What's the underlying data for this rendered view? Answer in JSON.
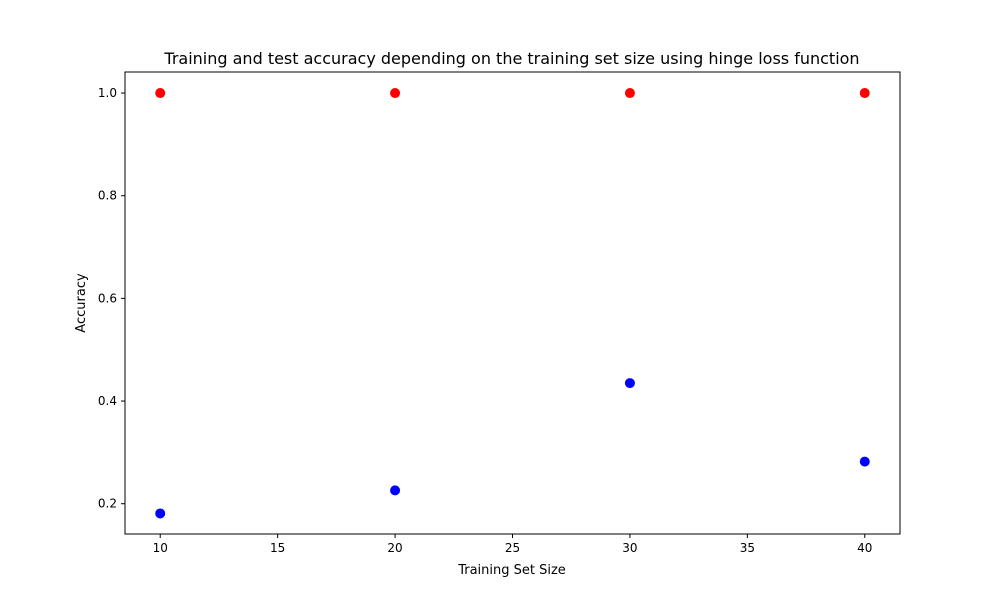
{
  "chart_data": {
    "type": "scatter",
    "title": "Training and test accuracy depending on the training set size using hinge loss function",
    "xlabel": "Training Set Size",
    "ylabel": "Accuracy",
    "xlim": [
      8.5,
      41.5
    ],
    "ylim": [
      0.141,
      1.041
    ],
    "xticks": [
      10,
      15,
      20,
      25,
      30,
      35,
      40
    ],
    "yticks": [
      0.2,
      0.4,
      0.6,
      0.8,
      1.0
    ],
    "xtick_labels": [
      "10",
      "15",
      "20",
      "25",
      "30",
      "35",
      "40"
    ],
    "ytick_labels": [
      "0.2",
      "0.4",
      "0.6",
      "0.8",
      "1.0"
    ],
    "grid": false,
    "series": [
      {
        "color": "#ff0000",
        "x": [
          10,
          20,
          30,
          40
        ],
        "y": [
          1.0,
          1.0,
          1.0,
          1.0
        ]
      },
      {
        "color": "#0000ff",
        "x": [
          10,
          20,
          30,
          40
        ],
        "y": [
          0.181,
          0.226,
          0.435,
          0.282
        ]
      }
    ]
  }
}
